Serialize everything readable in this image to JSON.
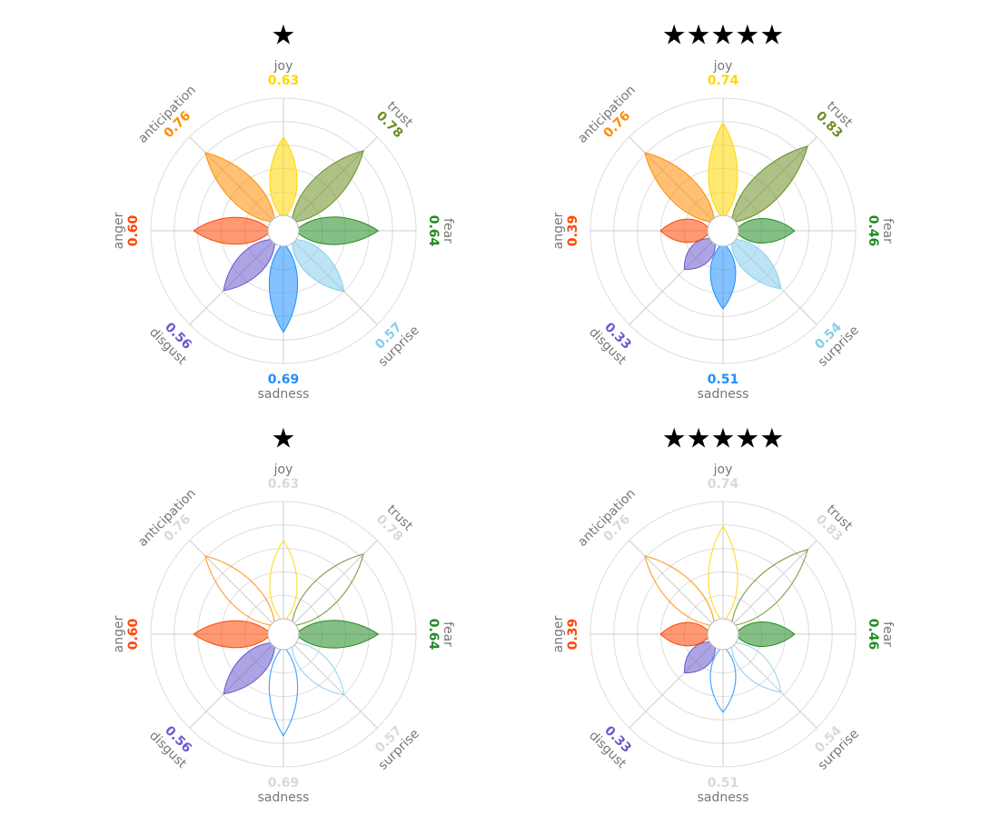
{
  "chart_data": [
    {
      "type": "radar",
      "title": "★",
      "categories": [
        "joy",
        "trust",
        "fear",
        "surprise",
        "sadness",
        "disgust",
        "anger",
        "anticipation"
      ],
      "values": [
        0.63,
        0.78,
        0.64,
        0.57,
        0.69,
        0.56,
        0.6,
        0.76
      ],
      "highlighted": [
        "joy",
        "trust",
        "fear",
        "surprise",
        "sadness",
        "disgust",
        "anger",
        "anticipation"
      ],
      "rlim": [
        0,
        1
      ],
      "grid": true
    },
    {
      "type": "radar",
      "title": "★★★★★",
      "categories": [
        "joy",
        "trust",
        "fear",
        "surprise",
        "sadness",
        "disgust",
        "anger",
        "anticipation"
      ],
      "values": [
        0.74,
        0.83,
        0.46,
        0.54,
        0.51,
        0.33,
        0.39,
        0.76
      ],
      "highlighted": [
        "joy",
        "trust",
        "fear",
        "surprise",
        "sadness",
        "disgust",
        "anger",
        "anticipation"
      ],
      "rlim": [
        0,
        1
      ],
      "grid": true
    },
    {
      "type": "radar",
      "title": "★",
      "categories": [
        "joy",
        "trust",
        "fear",
        "surprise",
        "sadness",
        "disgust",
        "anger",
        "anticipation"
      ],
      "values": [
        0.63,
        0.78,
        0.64,
        0.57,
        0.69,
        0.56,
        0.6,
        0.76
      ],
      "highlighted": [
        "fear",
        "disgust",
        "anger"
      ],
      "rlim": [
        0,
        1
      ],
      "grid": true
    },
    {
      "type": "radar",
      "title": "★★★★★",
      "categories": [
        "joy",
        "trust",
        "fear",
        "surprise",
        "sadness",
        "disgust",
        "anger",
        "anticipation"
      ],
      "values": [
        0.74,
        0.83,
        0.46,
        0.54,
        0.51,
        0.33,
        0.39,
        0.76
      ],
      "highlighted": [
        "fear",
        "disgust",
        "anger"
      ],
      "rlim": [
        0,
        1
      ],
      "grid": true
    }
  ],
  "colors": {
    "joy": "#FFD700",
    "trust": "#6B8E23",
    "fear": "#228B22",
    "surprise": "#87CEEB",
    "sadness": "#1E90FF",
    "disgust": "#6A5ACD",
    "anger": "#FF4500",
    "anticipation": "#FF8C00",
    "muted_text": "#d9d9d9",
    "label_text": "#777777",
    "grid": "#dddddd"
  }
}
